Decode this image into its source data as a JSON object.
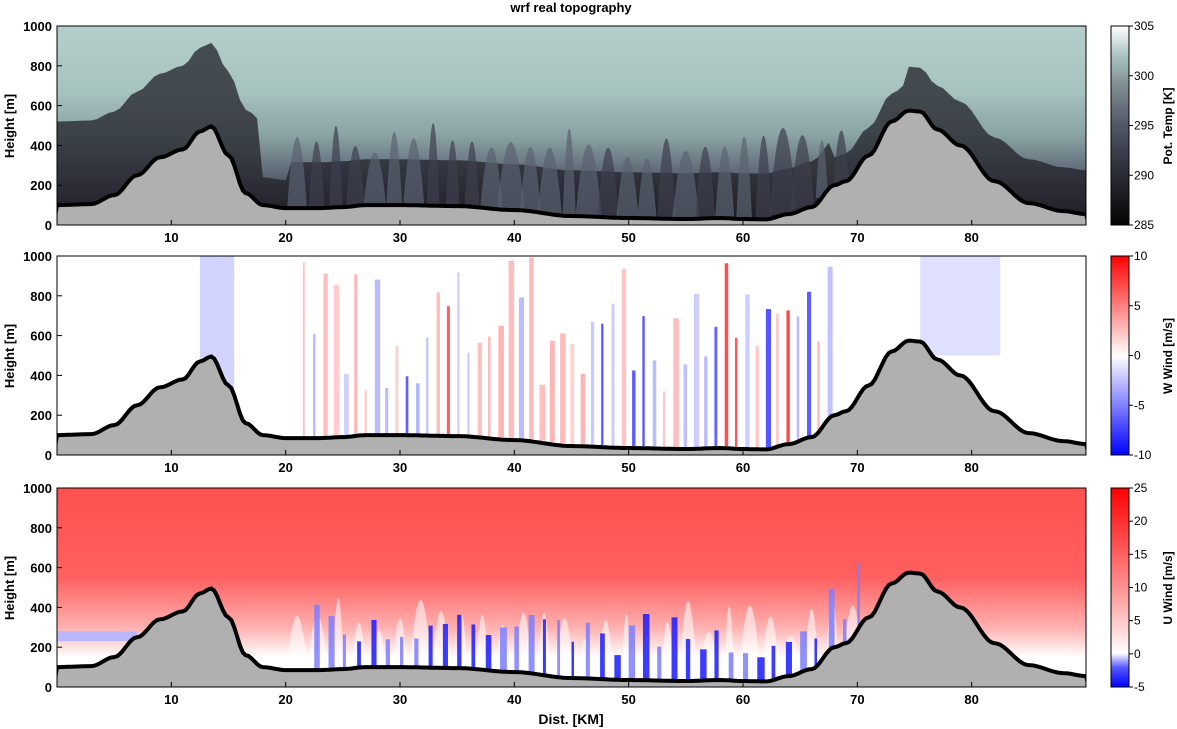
{
  "title": "wrf real topography",
  "x_axis": {
    "label": "Dist. [KM]",
    "range": [
      0,
      90
    ],
    "ticks": [
      10,
      20,
      30,
      40,
      50,
      60,
      70,
      80
    ]
  },
  "y_axis": {
    "label": "Height [m]",
    "range": [
      0,
      1000
    ],
    "ticks": [
      0,
      200,
      400,
      600,
      800,
      1000
    ]
  },
  "chart_data": [
    {
      "type": "heatmap",
      "panel": "top",
      "colorbar": {
        "label": "Pot. Temp [K]",
        "range": [
          285,
          305
        ],
        "ticks": [
          285,
          290,
          295,
          300,
          305
        ],
        "colormap": [
          "#050505",
          "#2a2a33",
          "#525766",
          "#7f8e93",
          "#a8c3c0",
          "#ffffff"
        ]
      },
      "field": {
        "quantity": "potential temperature",
        "upper_value_k": 300,
        "valley_surface_value_k": 286
      }
    },
    {
      "type": "heatmap",
      "panel": "middle",
      "colorbar": {
        "label": "W Wind [m/s]",
        "range": [
          -10,
          10
        ],
        "ticks": [
          -10,
          -5,
          0,
          5,
          10
        ],
        "colormap": [
          "#0000ff",
          "#7f7fff",
          "#ffffff",
          "#ff7f7f",
          "#ff0000"
        ]
      },
      "field": {
        "quantity": "vertical wind",
        "background_value": 0
      }
    },
    {
      "type": "heatmap",
      "panel": "bottom",
      "colorbar": {
        "label": "U Wind [m/s]",
        "range": [
          -5,
          25
        ],
        "ticks": [
          -5,
          0,
          5,
          10,
          15,
          20,
          25
        ],
        "colormap": [
          "#0000ff",
          "#b4b4ff",
          "#ffffff",
          "#ff8c8c",
          "#ff0000"
        ]
      },
      "field": {
        "quantity": "horizontal wind",
        "upper_value": 14,
        "near_surface_value": -4
      }
    }
  ],
  "terrain": {
    "fill": "#b0b0b0",
    "outline": "#000000",
    "x": [
      0,
      3,
      5,
      7,
      9,
      11,
      12.5,
      13.5,
      15,
      16.5,
      18,
      20,
      23,
      25,
      27,
      30,
      35,
      40,
      45,
      50,
      55,
      58,
      60,
      62,
      64,
      66,
      68,
      69,
      71,
      73,
      74.5,
      75.5,
      77,
      79,
      82,
      85,
      88,
      90
    ],
    "h": [
      100,
      105,
      150,
      250,
      340,
      380,
      470,
      495,
      350,
      160,
      100,
      85,
      85,
      90,
      100,
      100,
      95,
      75,
      45,
      35,
      30,
      35,
      30,
      28,
      55,
      90,
      200,
      220,
      350,
      520,
      575,
      570,
      480,
      400,
      220,
      110,
      70,
      55
    ]
  }
}
